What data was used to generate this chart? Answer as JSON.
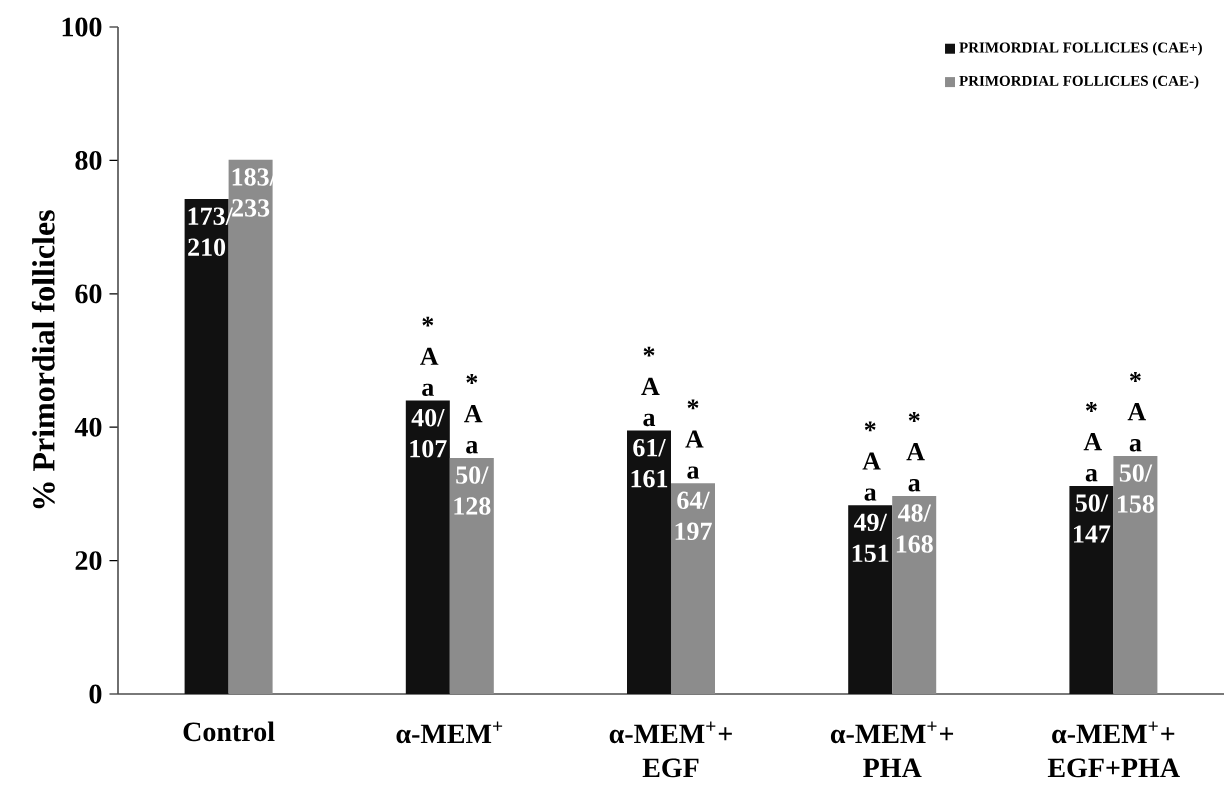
{
  "chart_data": {
    "type": "bar",
    "ylabel": "% Primordial follicles",
    "categories": [
      "Control",
      "α-MEM$^{+}$",
      "α-MEM$^{+}$+ EGF",
      "α-MEM$^{+}$+ PHA",
      "α-MEM$^{+}$+ EGF+PHA"
    ],
    "series": [
      {
        "name": "PRIMORDIAL FOLLICLES (CAE+)",
        "color": "#111111",
        "values": [
          74.2,
          44.0,
          39.5,
          28.3,
          31.2
        ],
        "value_labels": [
          "173/ 210",
          "40/ 107",
          "61/ 161",
          "49/ 151",
          "50/ 147"
        ]
      },
      {
        "name": "PRIMORDIAL FOLLICLES (CAE-)",
        "color": "#8c8c8c",
        "values": [
          80.1,
          35.4,
          31.6,
          29.7,
          35.7
        ],
        "value_labels": [
          "183/ 233",
          "50/ 128",
          "64/ 197",
          "48/ 168",
          "50/ 158"
        ]
      }
    ],
    "annotations": [
      {
        "text": "* A a",
        "x": "α-MEM$^{+}$",
        "y": 44.0
      },
      {
        "text": "* A a",
        "x": "α-MEM$^{+}$",
        "y": 35.4
      },
      {
        "text": "* A a",
        "x": "α-MEM$^{+}$+ EGF",
        "y": 39.5
      },
      {
        "text": "* A a",
        "x": "α-MEM$^{+}$+ EGF",
        "y": 31.6
      },
      {
        "text": "* A a",
        "x": "α-MEM$^{+}$+ PHA",
        "y": 28.3
      },
      {
        "text": "* A a",
        "x": "α-MEM$^{+}$+ PHA",
        "y": 29.7
      },
      {
        "text": "* A a",
        "x": "α-MEM$^{+}$+ EGF+PHA",
        "y": 31.2
      },
      {
        "text": "* A a",
        "x": "α-MEM$^{+}$+ EGF+PHA",
        "y": 35.7
      }
    ],
    "ylim": [
      0,
      100
    ],
    "yticks": [
      0,
      20,
      40,
      60,
      80,
      100
    ],
    "legend": "top right",
    "grid": false
  }
}
